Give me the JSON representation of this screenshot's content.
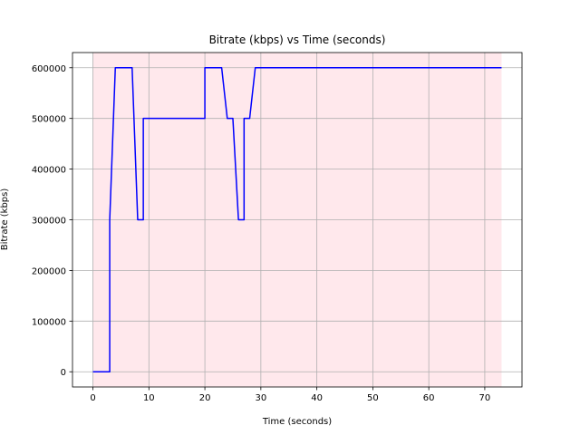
{
  "chart_data": {
    "type": "line",
    "title": "Bitrate (kbps) vs Time (seconds)",
    "xlabel": "Time (seconds)",
    "ylabel": "Bitrate (kbps)",
    "xlim": [
      -3.65,
      76.65
    ],
    "ylim": [
      -30000,
      630000
    ],
    "x_ticks": [
      0,
      10,
      20,
      30,
      40,
      50,
      60,
      70
    ],
    "y_ticks": [
      0,
      100000,
      200000,
      300000,
      400000,
      500000,
      600000
    ],
    "grid": true,
    "line_color": "#0000ff",
    "shaded_region": {
      "x_start": 0,
      "x_end": 73,
      "color": "#ffe8ec"
    },
    "series": [
      {
        "x": [
          0,
          3,
          3,
          4,
          7,
          8,
          9,
          9,
          20,
          20,
          23,
          24,
          25,
          26,
          27,
          27,
          28,
          29,
          73
        ],
        "values": [
          0,
          0,
          300000,
          600000,
          600000,
          300000,
          300000,
          500000,
          500000,
          600000,
          600000,
          500000,
          500000,
          300000,
          300000,
          500000,
          500000,
          600000,
          600000
        ]
      }
    ]
  }
}
